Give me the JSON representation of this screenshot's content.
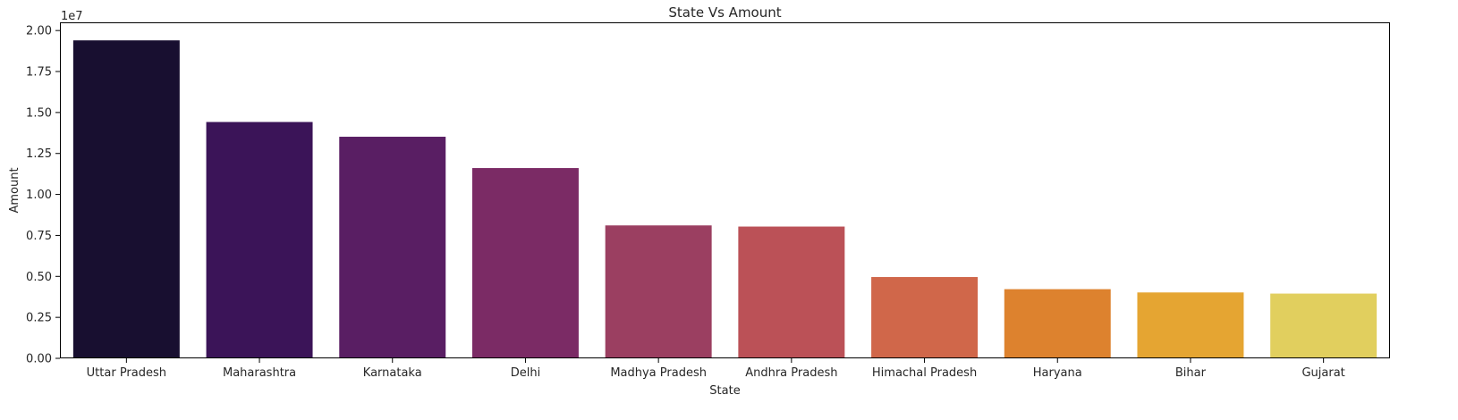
{
  "chart_data": {
    "type": "bar",
    "title": "State Vs Amount",
    "xlabel": "State",
    "ylabel": "Amount",
    "y_scale_label": "1e7",
    "ylim": [
      0,
      20500000
    ],
    "yticks": [
      0,
      2500000,
      5000000,
      7500000,
      10000000,
      12500000,
      15000000,
      17500000,
      20000000
    ],
    "ytick_labels": [
      "0.00",
      "0.25",
      "0.50",
      "0.75",
      "1.00",
      "1.25",
      "1.50",
      "1.75",
      "2.00"
    ],
    "grid": false,
    "legend": "none",
    "categories": [
      "Uttar Pradesh",
      "Maharashtra",
      "Karnataka",
      "Delhi",
      "Madhya Pradesh",
      "Andhra Pradesh",
      "Himachal Pradesh",
      "Haryana",
      "Bihar",
      "Gujarat"
    ],
    "values": [
      19400000,
      14420000,
      13520000,
      11610000,
      8110000,
      8040000,
      4960000,
      4220000,
      4020000,
      3950000
    ],
    "colors": [
      "#180f30",
      "#3b1458",
      "#591e63",
      "#7b2b65",
      "#9b3f61",
      "#bb5157",
      "#d0674a",
      "#dd822e",
      "#e5a532",
      "#e1cf5e"
    ]
  }
}
